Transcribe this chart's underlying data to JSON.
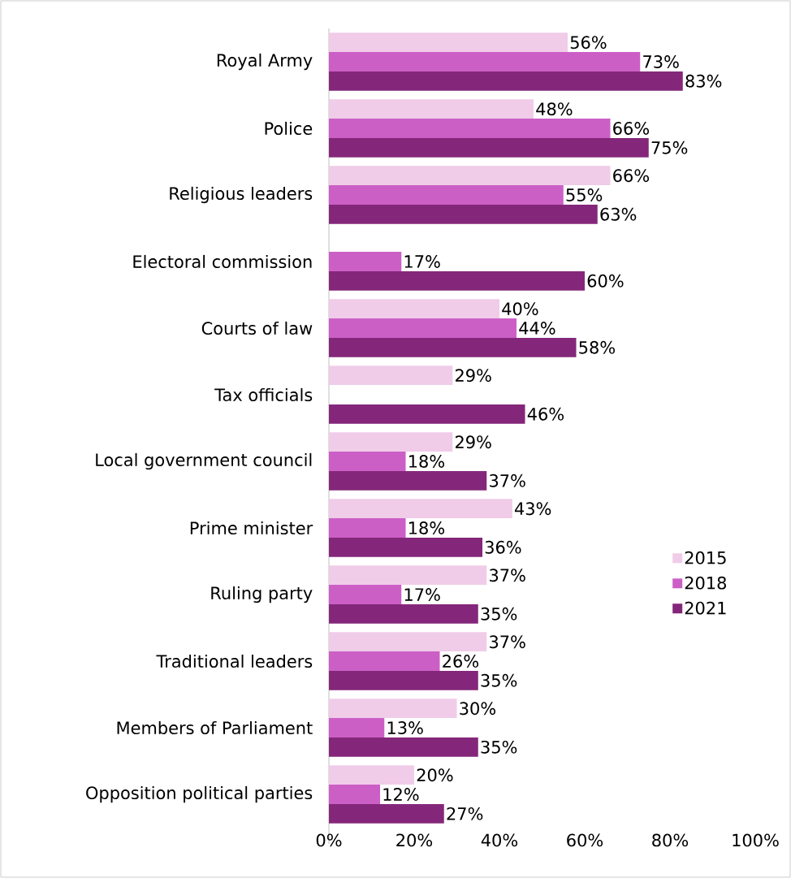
{
  "chart_data": {
    "type": "bar",
    "orientation": "horizontal",
    "legend": "right",
    "categories": [
      "Royal Army",
      "Police",
      "Religious leaders",
      "Electoral commission",
      "Courts of law",
      "Tax officials",
      "Local government council",
      "Prime minister",
      "Ruling party",
      "Traditional leaders",
      "Members of Parliament",
      "Opposition political parties"
    ],
    "series": [
      {
        "name": "2015",
        "color": "#f0cce8",
        "values": [
          56,
          48,
          66,
          null,
          40,
          29,
          29,
          43,
          37,
          37,
          30,
          20
        ],
        "value_labels": [
          "56%",
          "48%",
          "66%",
          null,
          "40%",
          "29%",
          "29%",
          "43%",
          "37%",
          "37%",
          "30%",
          "20%"
        ]
      },
      {
        "name": "2018",
        "color": "#cc5fc6",
        "values": [
          73,
          66,
          55,
          17,
          44,
          null,
          18,
          18,
          17,
          26,
          13,
          12
        ],
        "value_labels": [
          "73%",
          "66%",
          "55%",
          "17%",
          "44%",
          null,
          "18%",
          "18%",
          "17%",
          "26%",
          "13%",
          "12%"
        ]
      },
      {
        "name": "2021",
        "color": "#84277a",
        "values": [
          83,
          75,
          63,
          60,
          58,
          46,
          37,
          36,
          35,
          35,
          35,
          27
        ],
        "value_labels": [
          "83%",
          "75%",
          "63%",
          "60%",
          "58%",
          "46%",
          "37%",
          "36%",
          "35%",
          "35%",
          "35%",
          "27%"
        ]
      }
    ],
    "xlim": [
      0,
      100
    ],
    "xticks": [
      {
        "value": 0,
        "label": "0%"
      },
      {
        "value": 20,
        "label": "20%"
      },
      {
        "value": 40,
        "label": "40%"
      },
      {
        "value": 60,
        "label": "60%"
      },
      {
        "value": 80,
        "label": "80%"
      },
      {
        "value": 100,
        "label": "100%"
      }
    ]
  }
}
